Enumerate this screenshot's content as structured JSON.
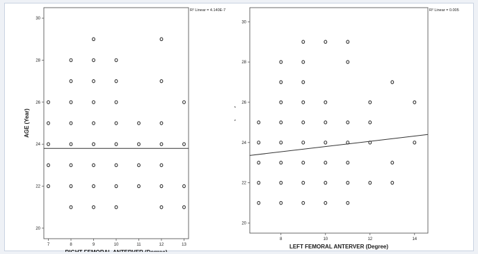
{
  "chart_data": [
    {
      "type": "scatter",
      "title": "",
      "xlabel": "RIGHT FEMORAL ANTERVER (Degree)",
      "ylabel": "",
      "xlim": [
        6.8,
        13.2
      ],
      "ylim": [
        19.5,
        30.5
      ],
      "x_ticks": [
        7,
        8,
        9,
        10,
        11,
        12,
        13
      ],
      "y_ticks": [
        20,
        22,
        24,
        26,
        28,
        30
      ],
      "points": [
        [
          7,
          22
        ],
        [
          7,
          23
        ],
        [
          7,
          24
        ],
        [
          7,
          25
        ],
        [
          7,
          26
        ],
        [
          8,
          21
        ],
        [
          8,
          22
        ],
        [
          8,
          23
        ],
        [
          8,
          24
        ],
        [
          8,
          25
        ],
        [
          8,
          26
        ],
        [
          8,
          27
        ],
        [
          8,
          28
        ],
        [
          9,
          21
        ],
        [
          9,
          22
        ],
        [
          9,
          23
        ],
        [
          9,
          24
        ],
        [
          9,
          25
        ],
        [
          9,
          26
        ],
        [
          9,
          27
        ],
        [
          9,
          28
        ],
        [
          9,
          29
        ],
        [
          10,
          21
        ],
        [
          10,
          22
        ],
        [
          10,
          23
        ],
        [
          10,
          24
        ],
        [
          10,
          25
        ],
        [
          10,
          26
        ],
        [
          10,
          27
        ],
        [
          10,
          28
        ],
        [
          11,
          22
        ],
        [
          11,
          23
        ],
        [
          11,
          24
        ],
        [
          11,
          25
        ],
        [
          12,
          21
        ],
        [
          12,
          22
        ],
        [
          12,
          23
        ],
        [
          12,
          24
        ],
        [
          12,
          25
        ],
        [
          12,
          27
        ],
        [
          12,
          29
        ],
        [
          13,
          21
        ],
        [
          13,
          22
        ],
        [
          13,
          24
        ],
        [
          13,
          26
        ]
      ],
      "fit_line": {
        "intercept": 23.8,
        "slope": 0.0
      },
      "r2_label": "R² Linear = 4.140E-7",
      "grid": false
    },
    {
      "type": "scatter",
      "title": "",
      "xlabel": "LEFT FEMORAL ANTERVER (Degree)",
      "ylabel": "AGE (Year)",
      "xlim": [
        6.6,
        14.6
      ],
      "ylim": [
        19.5,
        30.7
      ],
      "x_ticks": [
        8,
        10,
        12,
        14
      ],
      "y_ticks": [
        20,
        22,
        24,
        26,
        28,
        30
      ],
      "points": [
        [
          7,
          21
        ],
        [
          7,
          22
        ],
        [
          7,
          23
        ],
        [
          7,
          24
        ],
        [
          7,
          25
        ],
        [
          8,
          21
        ],
        [
          8,
          22
        ],
        [
          8,
          23
        ],
        [
          8,
          24
        ],
        [
          8,
          25
        ],
        [
          8,
          26
        ],
        [
          8,
          27
        ],
        [
          8,
          28
        ],
        [
          9,
          21
        ],
        [
          9,
          22
        ],
        [
          9,
          23
        ],
        [
          9,
          24
        ],
        [
          9,
          25
        ],
        [
          9,
          26
        ],
        [
          9,
          27
        ],
        [
          9,
          28
        ],
        [
          9,
          29
        ],
        [
          10,
          21
        ],
        [
          10,
          22
        ],
        [
          10,
          23
        ],
        [
          10,
          24
        ],
        [
          10,
          25
        ],
        [
          10,
          26
        ],
        [
          10,
          29
        ],
        [
          11,
          21
        ],
        [
          11,
          22
        ],
        [
          11,
          23
        ],
        [
          11,
          24
        ],
        [
          11,
          25
        ],
        [
          11,
          28
        ],
        [
          11,
          29
        ],
        [
          12,
          22
        ],
        [
          12,
          24
        ],
        [
          12,
          25
        ],
        [
          12,
          26
        ],
        [
          13,
          22
        ],
        [
          13,
          23
        ],
        [
          13,
          27
        ],
        [
          14,
          24
        ],
        [
          14,
          26
        ]
      ],
      "fit_line": {
        "intercept": 22.5,
        "slope": 0.13
      },
      "r2_label": "R² Linear = 0.005",
      "grid": false
    }
  ],
  "y_axis_label_left": "AGE (Year)",
  "colors": {
    "marker": "#333333",
    "axis": "#444444",
    "frame_border": "#c9d3e2"
  }
}
